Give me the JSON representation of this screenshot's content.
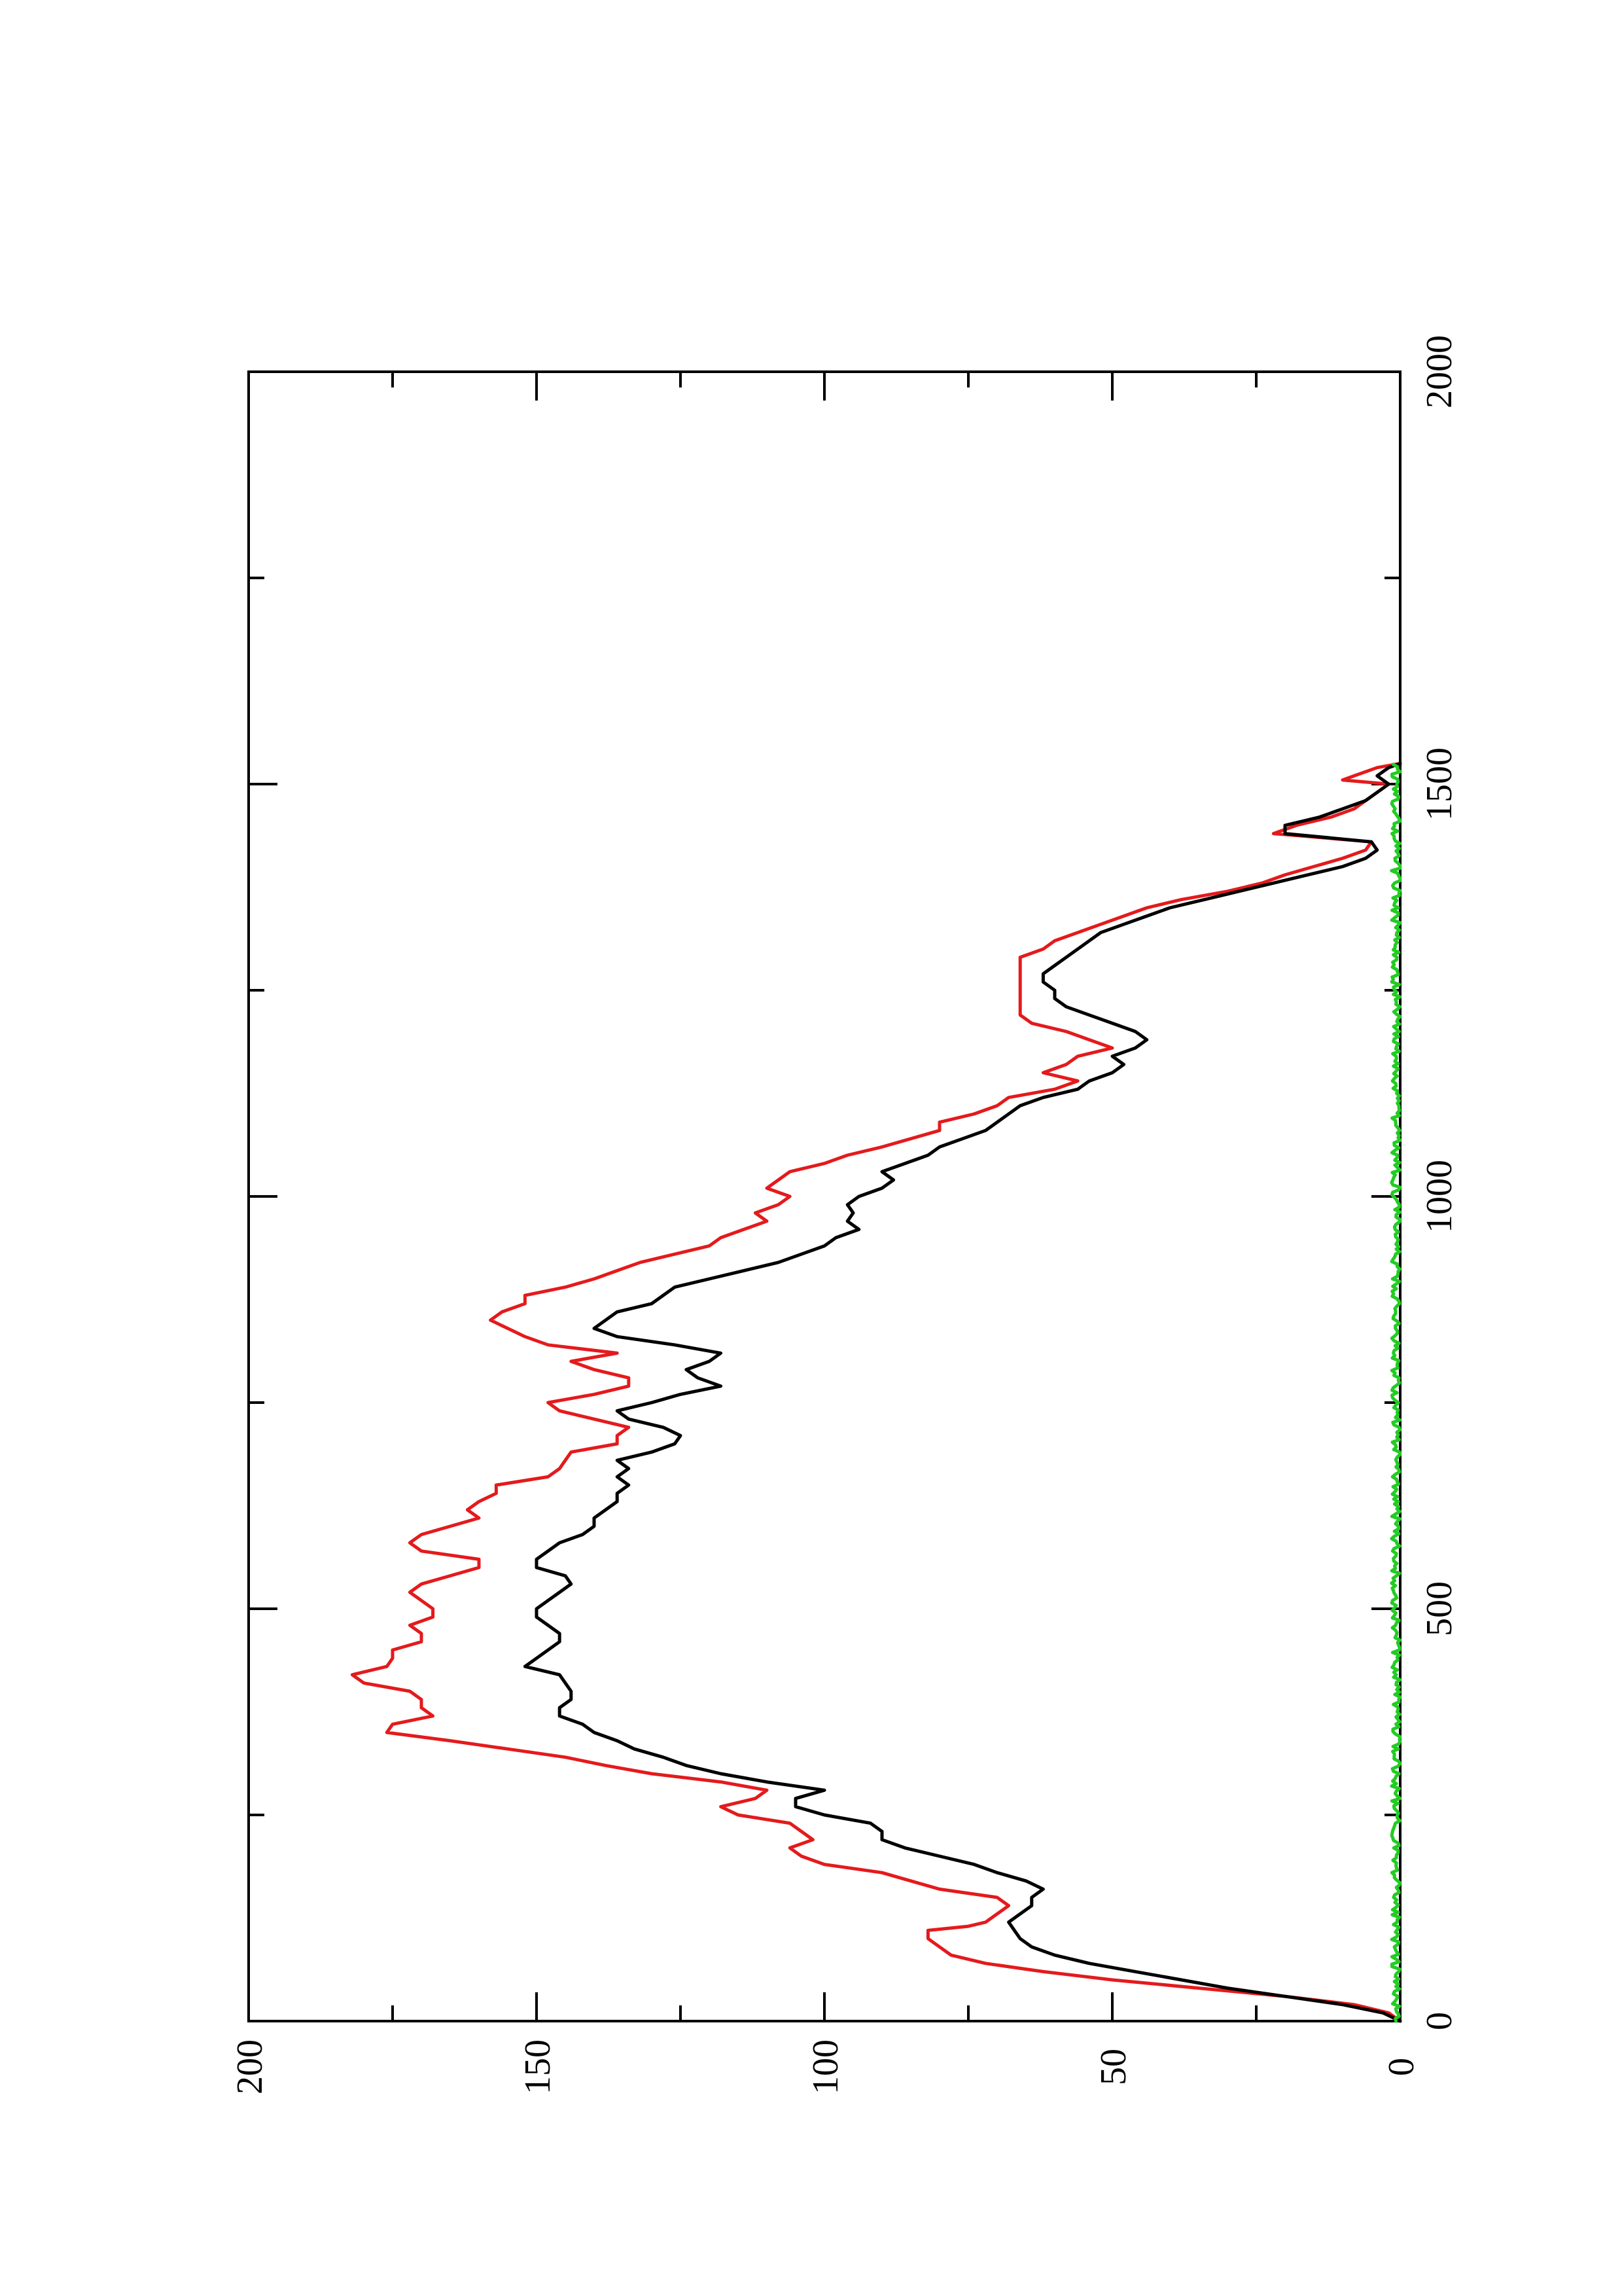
{
  "chart_data": {
    "type": "line",
    "title": "",
    "xlabel": "",
    "ylabel": "",
    "orientation": "rotated-90-counterclockwise",
    "xlim": [
      0,
      2000
    ],
    "ylim": [
      0,
      200
    ],
    "x_ticks": [
      "0",
      "500",
      "1000",
      "1500",
      "2000"
    ],
    "y_ticks": [
      "0",
      "50",
      "100",
      "150",
      "200"
    ],
    "grid": false,
    "legend": "none",
    "series": [
      {
        "color": "#e41a1c",
        "points": [
          [
            0,
            0
          ],
          [
            10,
            2
          ],
          [
            20,
            8
          ],
          [
            30,
            20
          ],
          [
            40,
            35
          ],
          [
            50,
            50
          ],
          [
            60,
            62
          ],
          [
            70,
            72
          ],
          [
            80,
            78
          ],
          [
            90,
            80
          ],
          [
            100,
            82
          ],
          [
            110,
            82
          ],
          [
            115,
            75
          ],
          [
            120,
            72
          ],
          [
            130,
            70
          ],
          [
            140,
            68
          ],
          [
            150,
            70
          ],
          [
            160,
            80
          ],
          [
            170,
            85
          ],
          [
            180,
            90
          ],
          [
            190,
            100
          ],
          [
            200,
            104
          ],
          [
            210,
            106
          ],
          [
            220,
            102
          ],
          [
            230,
            104
          ],
          [
            240,
            106
          ],
          [
            250,
            115
          ],
          [
            260,
            118
          ],
          [
            270,
            112
          ],
          [
            280,
            110
          ],
          [
            290,
            118
          ],
          [
            300,
            130
          ],
          [
            310,
            138
          ],
          [
            320,
            145
          ],
          [
            330,
            155
          ],
          [
            340,
            165
          ],
          [
            350,
            176
          ],
          [
            360,
            175
          ],
          [
            370,
            168
          ],
          [
            380,
            170
          ],
          [
            390,
            170
          ],
          [
            400,
            172
          ],
          [
            410,
            180
          ],
          [
            420,
            182
          ],
          [
            430,
            176
          ],
          [
            440,
            175
          ],
          [
            450,
            175
          ],
          [
            460,
            170
          ],
          [
            470,
            170
          ],
          [
            480,
            172
          ],
          [
            490,
            168
          ],
          [
            500,
            168
          ],
          [
            510,
            170
          ],
          [
            520,
            172
          ],
          [
            530,
            170
          ],
          [
            540,
            165
          ],
          [
            550,
            160
          ],
          [
            560,
            160
          ],
          [
            570,
            170
          ],
          [
            580,
            172
          ],
          [
            590,
            170
          ],
          [
            600,
            165
          ],
          [
            610,
            160
          ],
          [
            620,
            162
          ],
          [
            630,
            160
          ],
          [
            640,
            157
          ],
          [
            650,
            157
          ],
          [
            660,
            148
          ],
          [
            670,
            146
          ],
          [
            680,
            145
          ],
          [
            690,
            144
          ],
          [
            700,
            136
          ],
          [
            710,
            136
          ],
          [
            720,
            134
          ],
          [
            730,
            140
          ],
          [
            740,
            146
          ],
          [
            750,
            148
          ],
          [
            760,
            140
          ],
          [
            770,
            134
          ],
          [
            780,
            134
          ],
          [
            790,
            140
          ],
          [
            800,
            144
          ],
          [
            810,
            136
          ],
          [
            820,
            148
          ],
          [
            830,
            152
          ],
          [
            840,
            155
          ],
          [
            850,
            158
          ],
          [
            860,
            156
          ],
          [
            870,
            152
          ],
          [
            880,
            152
          ],
          [
            890,
            145
          ],
          [
            900,
            140
          ],
          [
            910,
            136
          ],
          [
            920,
            132
          ],
          [
            930,
            126
          ],
          [
            940,
            120
          ],
          [
            950,
            118
          ],
          [
            960,
            114
          ],
          [
            970,
            110
          ],
          [
            980,
            112
          ],
          [
            990,
            108
          ],
          [
            1000,
            106
          ],
          [
            1010,
            110
          ],
          [
            1020,
            108
          ],
          [
            1030,
            106
          ],
          [
            1040,
            100
          ],
          [
            1050,
            96
          ],
          [
            1060,
            90
          ],
          [
            1070,
            85
          ],
          [
            1080,
            80
          ],
          [
            1090,
            80
          ],
          [
            1100,
            74
          ],
          [
            1110,
            70
          ],
          [
            1120,
            68
          ],
          [
            1130,
            60
          ],
          [
            1140,
            56
          ],
          [
            1150,
            62
          ],
          [
            1160,
            58
          ],
          [
            1170,
            56
          ],
          [
            1180,
            50
          ],
          [
            1190,
            54
          ],
          [
            1200,
            58
          ],
          [
            1210,
            64
          ],
          [
            1220,
            66
          ],
          [
            1230,
            66
          ],
          [
            1240,
            66
          ],
          [
            1250,
            66
          ],
          [
            1260,
            66
          ],
          [
            1270,
            66
          ],
          [
            1280,
            66
          ],
          [
            1290,
            66
          ],
          [
            1300,
            62
          ],
          [
            1310,
            60
          ],
          [
            1320,
            56
          ],
          [
            1330,
            52
          ],
          [
            1340,
            48
          ],
          [
            1350,
            44
          ],
          [
            1360,
            38
          ],
          [
            1370,
            30
          ],
          [
            1380,
            24
          ],
          [
            1390,
            20
          ],
          [
            1400,
            15
          ],
          [
            1410,
            10
          ],
          [
            1420,
            6
          ],
          [
            1430,
            5
          ],
          [
            1440,
            22
          ],
          [
            1450,
            18
          ],
          [
            1460,
            12
          ],
          [
            1470,
            8
          ],
          [
            1480,
            6
          ],
          [
            1490,
            4
          ],
          [
            1500,
            2
          ],
          [
            1505,
            10
          ],
          [
            1510,
            8
          ],
          [
            1520,
            4
          ],
          [
            1525,
            0
          ]
        ]
      },
      {
        "color": "#000000",
        "points": [
          [
            0,
            0
          ],
          [
            10,
            3
          ],
          [
            20,
            10
          ],
          [
            30,
            20
          ],
          [
            40,
            30
          ],
          [
            50,
            38
          ],
          [
            60,
            46
          ],
          [
            70,
            54
          ],
          [
            80,
            60
          ],
          [
            90,
            64
          ],
          [
            100,
            66
          ],
          [
            110,
            67
          ],
          [
            120,
            68
          ],
          [
            130,
            66
          ],
          [
            140,
            64
          ],
          [
            150,
            64
          ],
          [
            160,
            62
          ],
          [
            170,
            65
          ],
          [
            180,
            70
          ],
          [
            190,
            74
          ],
          [
            200,
            80
          ],
          [
            210,
            86
          ],
          [
            220,
            90
          ],
          [
            230,
            90
          ],
          [
            240,
            92
          ],
          [
            250,
            100
          ],
          [
            260,
            105
          ],
          [
            270,
            105
          ],
          [
            280,
            100
          ],
          [
            290,
            110
          ],
          [
            300,
            118
          ],
          [
            310,
            124
          ],
          [
            320,
            128
          ],
          [
            330,
            133
          ],
          [
            340,
            136
          ],
          [
            350,
            140
          ],
          [
            360,
            142
          ],
          [
            370,
            146
          ],
          [
            380,
            146
          ],
          [
            390,
            144
          ],
          [
            400,
            144
          ],
          [
            410,
            145
          ],
          [
            420,
            146
          ],
          [
            430,
            152
          ],
          [
            440,
            150
          ],
          [
            450,
            148
          ],
          [
            460,
            146
          ],
          [
            470,
            146
          ],
          [
            480,
            148
          ],
          [
            490,
            150
          ],
          [
            500,
            150
          ],
          [
            510,
            148
          ],
          [
            520,
            146
          ],
          [
            530,
            144
          ],
          [
            540,
            145
          ],
          [
            550,
            150
          ],
          [
            560,
            150
          ],
          [
            570,
            148
          ],
          [
            580,
            146
          ],
          [
            590,
            142
          ],
          [
            600,
            140
          ],
          [
            610,
            140
          ],
          [
            620,
            138
          ],
          [
            630,
            136
          ],
          [
            640,
            136
          ],
          [
            650,
            134
          ],
          [
            660,
            136
          ],
          [
            670,
            134
          ],
          [
            680,
            136
          ],
          [
            690,
            130
          ],
          [
            700,
            126
          ],
          [
            710,
            125
          ],
          [
            720,
            128
          ],
          [
            730,
            134
          ],
          [
            740,
            136
          ],
          [
            750,
            130
          ],
          [
            760,
            125
          ],
          [
            770,
            118
          ],
          [
            780,
            122
          ],
          [
            790,
            124
          ],
          [
            800,
            120
          ],
          [
            810,
            118
          ],
          [
            820,
            126
          ],
          [
            830,
            136
          ],
          [
            840,
            140
          ],
          [
            850,
            138
          ],
          [
            860,
            136
          ],
          [
            870,
            130
          ],
          [
            880,
            128
          ],
          [
            890,
            126
          ],
          [
            900,
            120
          ],
          [
            910,
            114
          ],
          [
            920,
            108
          ],
          [
            930,
            104
          ],
          [
            940,
            100
          ],
          [
            950,
            98
          ],
          [
            960,
            94
          ],
          [
            970,
            96
          ],
          [
            980,
            95
          ],
          [
            990,
            96
          ],
          [
            1000,
            94
          ],
          [
            1010,
            90
          ],
          [
            1020,
            88
          ],
          [
            1030,
            90
          ],
          [
            1040,
            86
          ],
          [
            1050,
            82
          ],
          [
            1060,
            80
          ],
          [
            1070,
            76
          ],
          [
            1080,
            72
          ],
          [
            1090,
            70
          ],
          [
            1100,
            68
          ],
          [
            1110,
            66
          ],
          [
            1120,
            62
          ],
          [
            1130,
            56
          ],
          [
            1140,
            54
          ],
          [
            1150,
            50
          ],
          [
            1160,
            48
          ],
          [
            1170,
            50
          ],
          [
            1180,
            46
          ],
          [
            1190,
            44
          ],
          [
            1200,
            46
          ],
          [
            1210,
            50
          ],
          [
            1220,
            54
          ],
          [
            1230,
            58
          ],
          [
            1240,
            60
          ],
          [
            1250,
            60
          ],
          [
            1260,
            62
          ],
          [
            1270,
            62
          ],
          [
            1280,
            60
          ],
          [
            1290,
            58
          ],
          [
            1300,
            56
          ],
          [
            1310,
            54
          ],
          [
            1320,
            52
          ],
          [
            1330,
            48
          ],
          [
            1340,
            44
          ],
          [
            1350,
            40
          ],
          [
            1360,
            34
          ],
          [
            1370,
            28
          ],
          [
            1380,
            22
          ],
          [
            1390,
            16
          ],
          [
            1400,
            10
          ],
          [
            1410,
            6
          ],
          [
            1420,
            4
          ],
          [
            1430,
            5
          ],
          [
            1440,
            20
          ],
          [
            1450,
            20
          ],
          [
            1460,
            14
          ],
          [
            1470,
            10
          ],
          [
            1480,
            6
          ],
          [
            1490,
            4
          ],
          [
            1500,
            2
          ],
          [
            1510,
            4
          ],
          [
            1520,
            2
          ],
          [
            1525,
            0
          ]
        ]
      },
      {
        "color": "#22cc22",
        "noise_amplitude": 1.5,
        "x_range": [
          0,
          1525
        ],
        "baseline": 0
      }
    ]
  }
}
